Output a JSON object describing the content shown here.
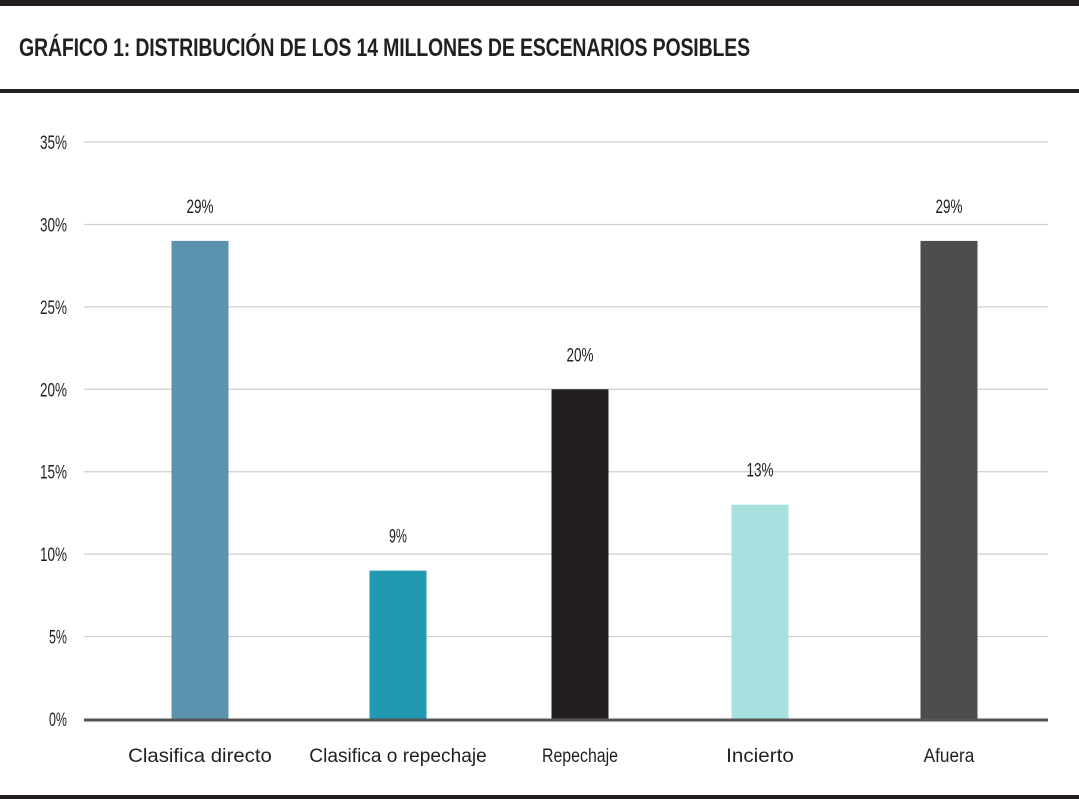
{
  "header": {
    "title": "GRÁFICO 1: DISTRIBUCIÓN DE LOS 14 MILLONES DE ESCENARIOS POSIBLES"
  },
  "chart_data": {
    "type": "bar",
    "title": "GRÁFICO 1: DISTRIBUCIÓN DE LOS 14 MILLONES DE ESCENARIOS POSIBLES",
    "xlabel": "",
    "ylabel": "",
    "categories": [
      "Clasifica directo",
      "Clasifica o repechaje",
      "Repechaje",
      "Incierto",
      "Afuera"
    ],
    "values": [
      29,
      9,
      20,
      13,
      29
    ],
    "value_labels": [
      "29%",
      "9%",
      "20%",
      "13%",
      "29%"
    ],
    "colors": [
      "#5b93ae",
      "#2199b1",
      "#231f20",
      "#a6e1df",
      "#4e4c4d"
    ],
    "ylim": [
      0,
      35
    ],
    "yticks": [
      0,
      5,
      10,
      15,
      20,
      25,
      30,
      35
    ],
    "ytick_labels": [
      "0%",
      "5%",
      "10%",
      "15%",
      "20%",
      "25%",
      "30%",
      "35%"
    ],
    "grid": true,
    "legend": "none",
    "gridline_color": "#cfcfcf",
    "axis_color": "#555555"
  }
}
